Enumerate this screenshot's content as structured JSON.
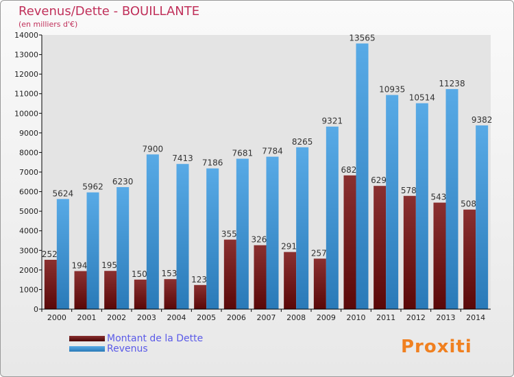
{
  "header": {
    "title": "Revenus/Dette - BOUILLANTE",
    "subtitle": "(en milliers d'€)"
  },
  "logo": "Proxiti",
  "chart_data": {
    "type": "bar",
    "title": "Revenus/Dette - BOUILLANTE",
    "ylabel": "(en milliers d'€)",
    "ylim": [
      0,
      14000
    ],
    "yticks": [
      0,
      1000,
      2000,
      3000,
      4000,
      5000,
      6000,
      7000,
      8000,
      9000,
      10000,
      11000,
      12000,
      13000,
      14000
    ],
    "categories": [
      "2000",
      "2001",
      "2002",
      "2003",
      "2004",
      "2005",
      "2006",
      "2007",
      "2008",
      "2009",
      "2010",
      "2011",
      "2012",
      "2013",
      "2014"
    ],
    "series": [
      {
        "name": "Montant de la Dette",
        "color": "#7a1c1c",
        "values": [
          2520,
          1944,
          1953,
          1509,
          1533,
          1232,
          3550,
          3264,
          2918,
          2579,
          6829,
          6293,
          5783,
          5439,
          5084
        ]
      },
      {
        "name": "Revenus",
        "color": "#3b95d8",
        "values": [
          5624,
          5962,
          6230,
          7900,
          7413,
          7186,
          7681,
          7784,
          8265,
          9321,
          13565,
          10935,
          10514,
          11238,
          9382
        ]
      }
    ],
    "legend": "bottom-left"
  }
}
